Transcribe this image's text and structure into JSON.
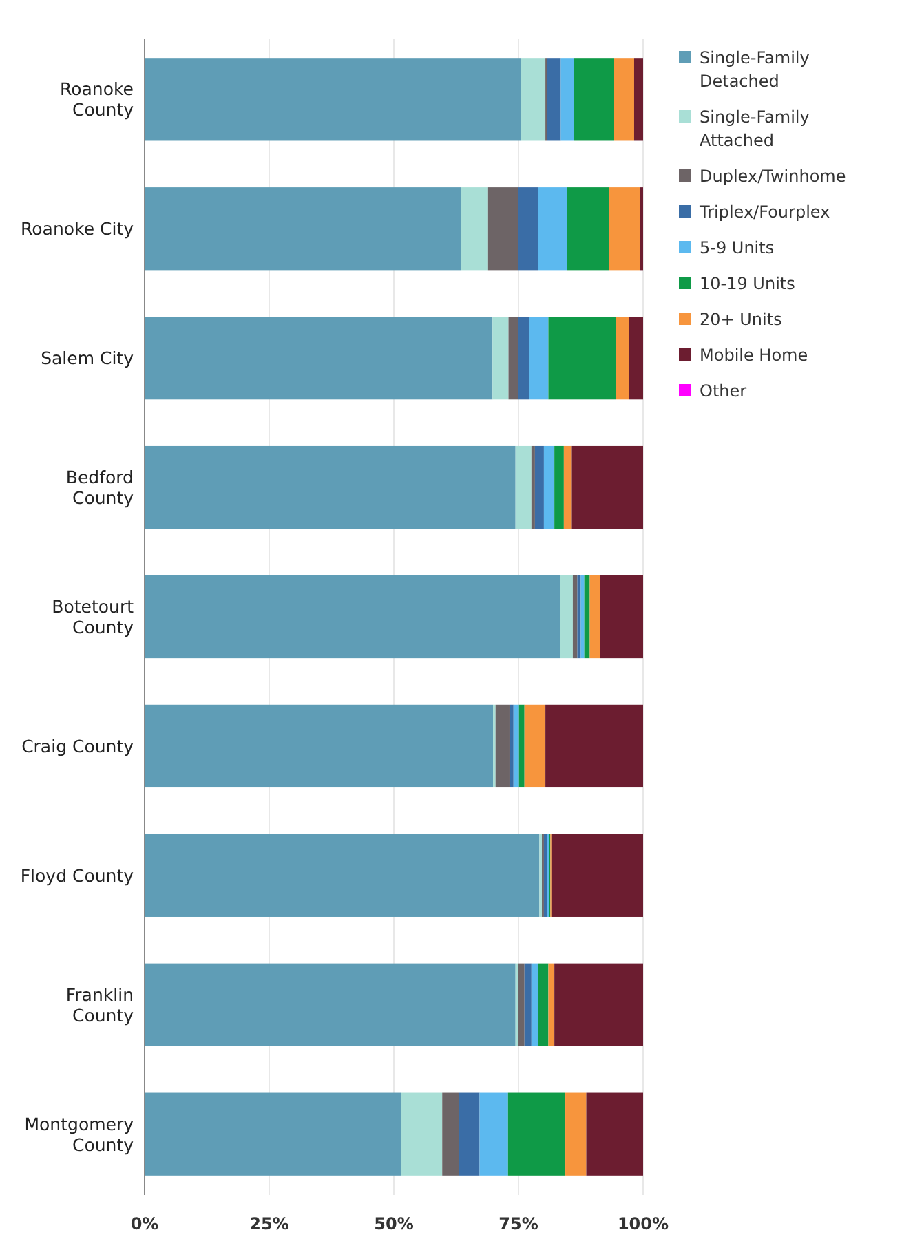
{
  "chart_data": {
    "type": "bar",
    "orientation": "horizontal",
    "stacked": true,
    "categories": [
      "Roanoke\nCounty",
      "Roanoke City",
      "Salem City",
      "Bedford\nCounty",
      "Botetourt\nCounty",
      "Craig County",
      "Floyd County",
      "Franklin\nCounty",
      "Montgomery\nCounty"
    ],
    "xlim": [
      0,
      100
    ],
    "xticks": [
      {
        "value": 0,
        "label": "0%"
      },
      {
        "value": 25,
        "label": "25%"
      },
      {
        "value": 50,
        "label": "50%"
      },
      {
        "value": 75,
        "label": "75%"
      },
      {
        "value": 100,
        "label": "100%"
      }
    ],
    "grid": "x",
    "legend": "right",
    "series": [
      {
        "name": "Single-Family Detached",
        "color": "#5f9db6",
        "values": [
          75.5,
          63.4,
          69.8,
          74.4,
          83.3,
          69.9,
          79.2,
          74.4,
          51.4
        ]
      },
      {
        "name": "Single-Family Attached",
        "color": "#a9dfd6",
        "values": [
          4.9,
          5.5,
          3.2,
          3.2,
          2.6,
          0.5,
          0.5,
          0.5,
          8.3
        ]
      },
      {
        "name": "Duplex/Twinhome",
        "color": "#6d6466",
        "values": [
          0.4,
          6.1,
          2.0,
          0.7,
          0.9,
          2.8,
          0.4,
          1.3,
          3.4
        ]
      },
      {
        "name": "Triplex/Fourplex",
        "color": "#3a6da6",
        "values": [
          2.7,
          3.9,
          2.2,
          1.8,
          0.7,
          0.8,
          0.7,
          1.4,
          4.1
        ]
      },
      {
        "name": "5-9 Units",
        "color": "#5cb9ef",
        "values": [
          2.6,
          5.8,
          3.8,
          2.1,
          0.7,
          1.1,
          0.4,
          1.3,
          5.7
        ]
      },
      {
        "name": "10-19 Units",
        "color": "#0f9a47",
        "values": [
          8.1,
          8.5,
          13.6,
          1.9,
          1.1,
          1.1,
          0.2,
          2.1,
          11.5
        ]
      },
      {
        "name": "20+ Units",
        "color": "#f7953d",
        "values": [
          4.0,
          6.2,
          2.5,
          1.6,
          2.1,
          4.2,
          0.2,
          1.2,
          4.2
        ]
      },
      {
        "name": "Mobile Home",
        "color": "#6c1d30",
        "values": [
          1.8,
          0.6,
          2.9,
          14.3,
          8.6,
          19.6,
          18.4,
          17.8,
          11.4
        ]
      },
      {
        "name": "Other",
        "color": "#ff00ff",
        "values": [
          0,
          0,
          0,
          0,
          0,
          0,
          0,
          0,
          0
        ]
      }
    ]
  }
}
